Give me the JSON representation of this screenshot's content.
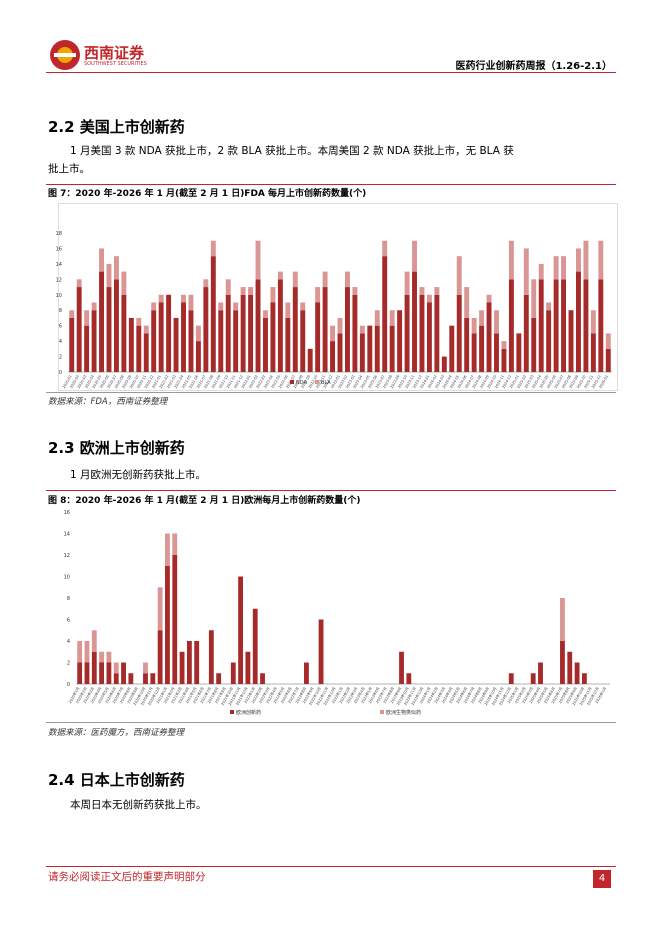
{
  "document": {
    "header": {
      "logo": "西南证券",
      "logo_en": "SOUTHWEST SECURITIES",
      "title": "医药行业创新药周报（1.26-2.1）"
    },
    "sections": [
      {
        "heading": "2.2 美国上市创新药",
        "paragraph": "1 月美国 3 款 NDA 获批上市，2 款 BLA 获批上市。本周美国 2 款 NDA 获批上市，无 BLA 获批上市。",
        "caption": "图 7：2020 年-2026 年 1 月(截至 2 月 1 日)FDA 每月上市创新药数量(个)",
        "source": "数据来源：FDA，西南证券整理"
      },
      {
        "heading": "2.3 欧洲上市创新药",
        "paragraph": "1 月欧洲无创新药获批上市。",
        "caption": "图 8：2020 年-2026 年 1 月(截至 2 月 1 日)欧洲每月上市创新药数量(个)",
        "source": "数据来源：医药魔方，西南证券整理"
      },
      {
        "heading": "2.4 日本上市创新药",
        "paragraph": "本周日本无创新药获批上市。"
      }
    ],
    "footer": {
      "note": "请务必阅读正文后的重要声明部分",
      "page": "4"
    }
  },
  "chart_data": [
    {
      "type": "bar",
      "stacked": true,
      "legend": "bottom",
      "grid": false,
      "categories": [
        "2020-01",
        "2020-02",
        "2020-03",
        "2020-04",
        "2020-05",
        "2020-06",
        "2020-07",
        "2020-08",
        "2020-09",
        "2020-10",
        "2020-11",
        "2020-12",
        "2021-01",
        "2021-02",
        "2021-03",
        "2021-04",
        "2021-05",
        "2021-06",
        "2021-07",
        "2021-08",
        "2021-09",
        "2021-10",
        "2021-11",
        "2021-12",
        "2022-01",
        "2022-02",
        "2022-03",
        "2022-04",
        "2022-05",
        "2022-06",
        "2022-07",
        "2022-08",
        "2022-09",
        "2022-10",
        "2022-11",
        "2022-12",
        "2023-01",
        "2023-02",
        "2023-03",
        "2023-04",
        "2023-05",
        "2023-06",
        "2023-07",
        "2023-08",
        "2023-09",
        "2023-10",
        "2023-11",
        "2023-12",
        "2024-01",
        "2024-02",
        "2024-03",
        "2024-04",
        "2024-05",
        "2024-06",
        "2024-07",
        "2024-08",
        "2024-09",
        "2024-10",
        "2024-11",
        "2024-12",
        "2025-01",
        "2025-02",
        "2025-03",
        "2025-04",
        "2025-05",
        "2025-06",
        "2025-07",
        "2025-08",
        "2025-09",
        "2025-10",
        "2025-11",
        "2025-12",
        "2026-01"
      ],
      "series": [
        {
          "name": "NDA",
          "color": "#a52a2a",
          "values": [
            7,
            11,
            6,
            8,
            13,
            11,
            12,
            10,
            7,
            6,
            5,
            8,
            9,
            10,
            7,
            9,
            8,
            4,
            11,
            15,
            8,
            10,
            8,
            10,
            10,
            12,
            7,
            9,
            12,
            7,
            11,
            8,
            3,
            9,
            11,
            4,
            5,
            11,
            10,
            5,
            6,
            6,
            15,
            6,
            8,
            10,
            13,
            10,
            9,
            10,
            2,
            6,
            10,
            7,
            5,
            6,
            9,
            5,
            3,
            12,
            5,
            10,
            7,
            12,
            8,
            12,
            12,
            8,
            13,
            12,
            5,
            12,
            3
          ]
        },
        {
          "name": "BLA",
          "color": "#d99694",
          "values": [
            1,
            1,
            2,
            1,
            3,
            3,
            3,
            3,
            0,
            1,
            1,
            1,
            1,
            0,
            0,
            1,
            2,
            2,
            1,
            2,
            1,
            2,
            1,
            1,
            1,
            5,
            1,
            2,
            1,
            2,
            2,
            1,
            0,
            2,
            2,
            2,
            2,
            2,
            1,
            1,
            0,
            2,
            2,
            2,
            0,
            3,
            4,
            1,
            1,
            1,
            0,
            0,
            5,
            4,
            2,
            2,
            1,
            3,
            1,
            5,
            0,
            6,
            5,
            2,
            1,
            3,
            3,
            0,
            3,
            5,
            3,
            5,
            2
          ]
        }
      ],
      "ylim": [
        0,
        18
      ],
      "yticks": [
        0,
        2,
        4,
        6,
        8,
        10,
        12,
        14,
        16,
        18
      ]
    },
    {
      "type": "bar",
      "stacked": true,
      "legend": "bottom",
      "grid": false,
      "categories": [
        "2020年1月",
        "2020年2月",
        "2020年3月",
        "2020年4月",
        "2020年5月",
        "2020年6月",
        "2020年7月",
        "2020年8月",
        "2020年9月",
        "2020年10月",
        "2020年11月",
        "2020年12月",
        "2021年1月",
        "2021年2月",
        "2021年3月",
        "2021年4月",
        "2021年5月",
        "2021年6月",
        "2021年7月",
        "2021年8月",
        "2021年9月",
        "2021年10月",
        "2021年11月",
        "2021年12月",
        "2022年1月",
        "2022年2月",
        "2022年3月",
        "2022年4月",
        "2022年5月",
        "2022年6月",
        "2022年7月",
        "2022年8月",
        "2022年9月",
        "2022年10月",
        "2022年11月",
        "2022年12月",
        "2023年1月",
        "2023年2月",
        "2023年3月",
        "2023年4月",
        "2023年5月",
        "2023年6月",
        "2023年7月",
        "2023年8月",
        "2023年9月",
        "2023年10月",
        "2023年11月",
        "2023年12月",
        "2024年1月",
        "2024年2月",
        "2024年3月",
        "2024年4月",
        "2024年5月",
        "2024年6月",
        "2024年7月",
        "2024年8月",
        "2024年9月",
        "2024年10月",
        "2024年11月",
        "2024年12月",
        "2025年1月",
        "2025年2月",
        "2025年3月",
        "2025年4月",
        "2025年5月",
        "2025年6月",
        "2025年7月",
        "2025年8月",
        "2025年9月",
        "2025年10月",
        "2025年11月",
        "2025年12月",
        "2026年1月"
      ],
      "series": [
        {
          "name": "欧洲创新药",
          "color": "#a52a2a",
          "values": [
            2,
            2,
            3,
            2,
            2,
            1,
            2,
            1,
            0,
            1,
            1,
            5,
            11,
            12,
            3,
            4,
            4,
            0,
            5,
            1,
            0,
            2,
            10,
            3,
            7,
            1,
            0,
            0,
            0,
            0,
            0,
            2,
            0,
            6,
            0,
            0,
            0,
            0,
            0,
            0,
            0,
            0,
            0,
            0,
            3,
            1,
            0,
            0,
            0,
            0,
            0,
            0,
            0,
            0,
            0,
            0,
            0,
            0,
            0,
            1,
            0,
            0,
            1,
            2,
            0,
            0,
            4,
            3,
            2,
            1,
            0,
            0,
            0
          ]
        },
        {
          "name": "欧洲生物类似药",
          "color": "#d99694",
          "values": [
            2,
            2,
            2,
            1,
            1,
            1,
            0,
            0,
            0,
            1,
            0,
            4,
            3,
            2,
            0,
            0,
            0,
            0,
            0,
            0,
            0,
            0,
            0,
            0,
            0,
            0,
            0,
            0,
            0,
            0,
            0,
            0,
            0,
            0,
            0,
            0,
            0,
            0,
            0,
            0,
            0,
            0,
            0,
            0,
            0,
            0,
            0,
            0,
            0,
            0,
            0,
            0,
            0,
            0,
            0,
            0,
            0,
            0,
            0,
            0,
            0,
            0,
            0,
            0,
            0,
            0,
            4,
            0,
            0,
            0,
            0,
            0,
            0
          ]
        }
      ],
      "ylim": [
        0,
        16
      ],
      "yticks": [
        0,
        2,
        4,
        6,
        8,
        10,
        12,
        14,
        16
      ]
    }
  ]
}
